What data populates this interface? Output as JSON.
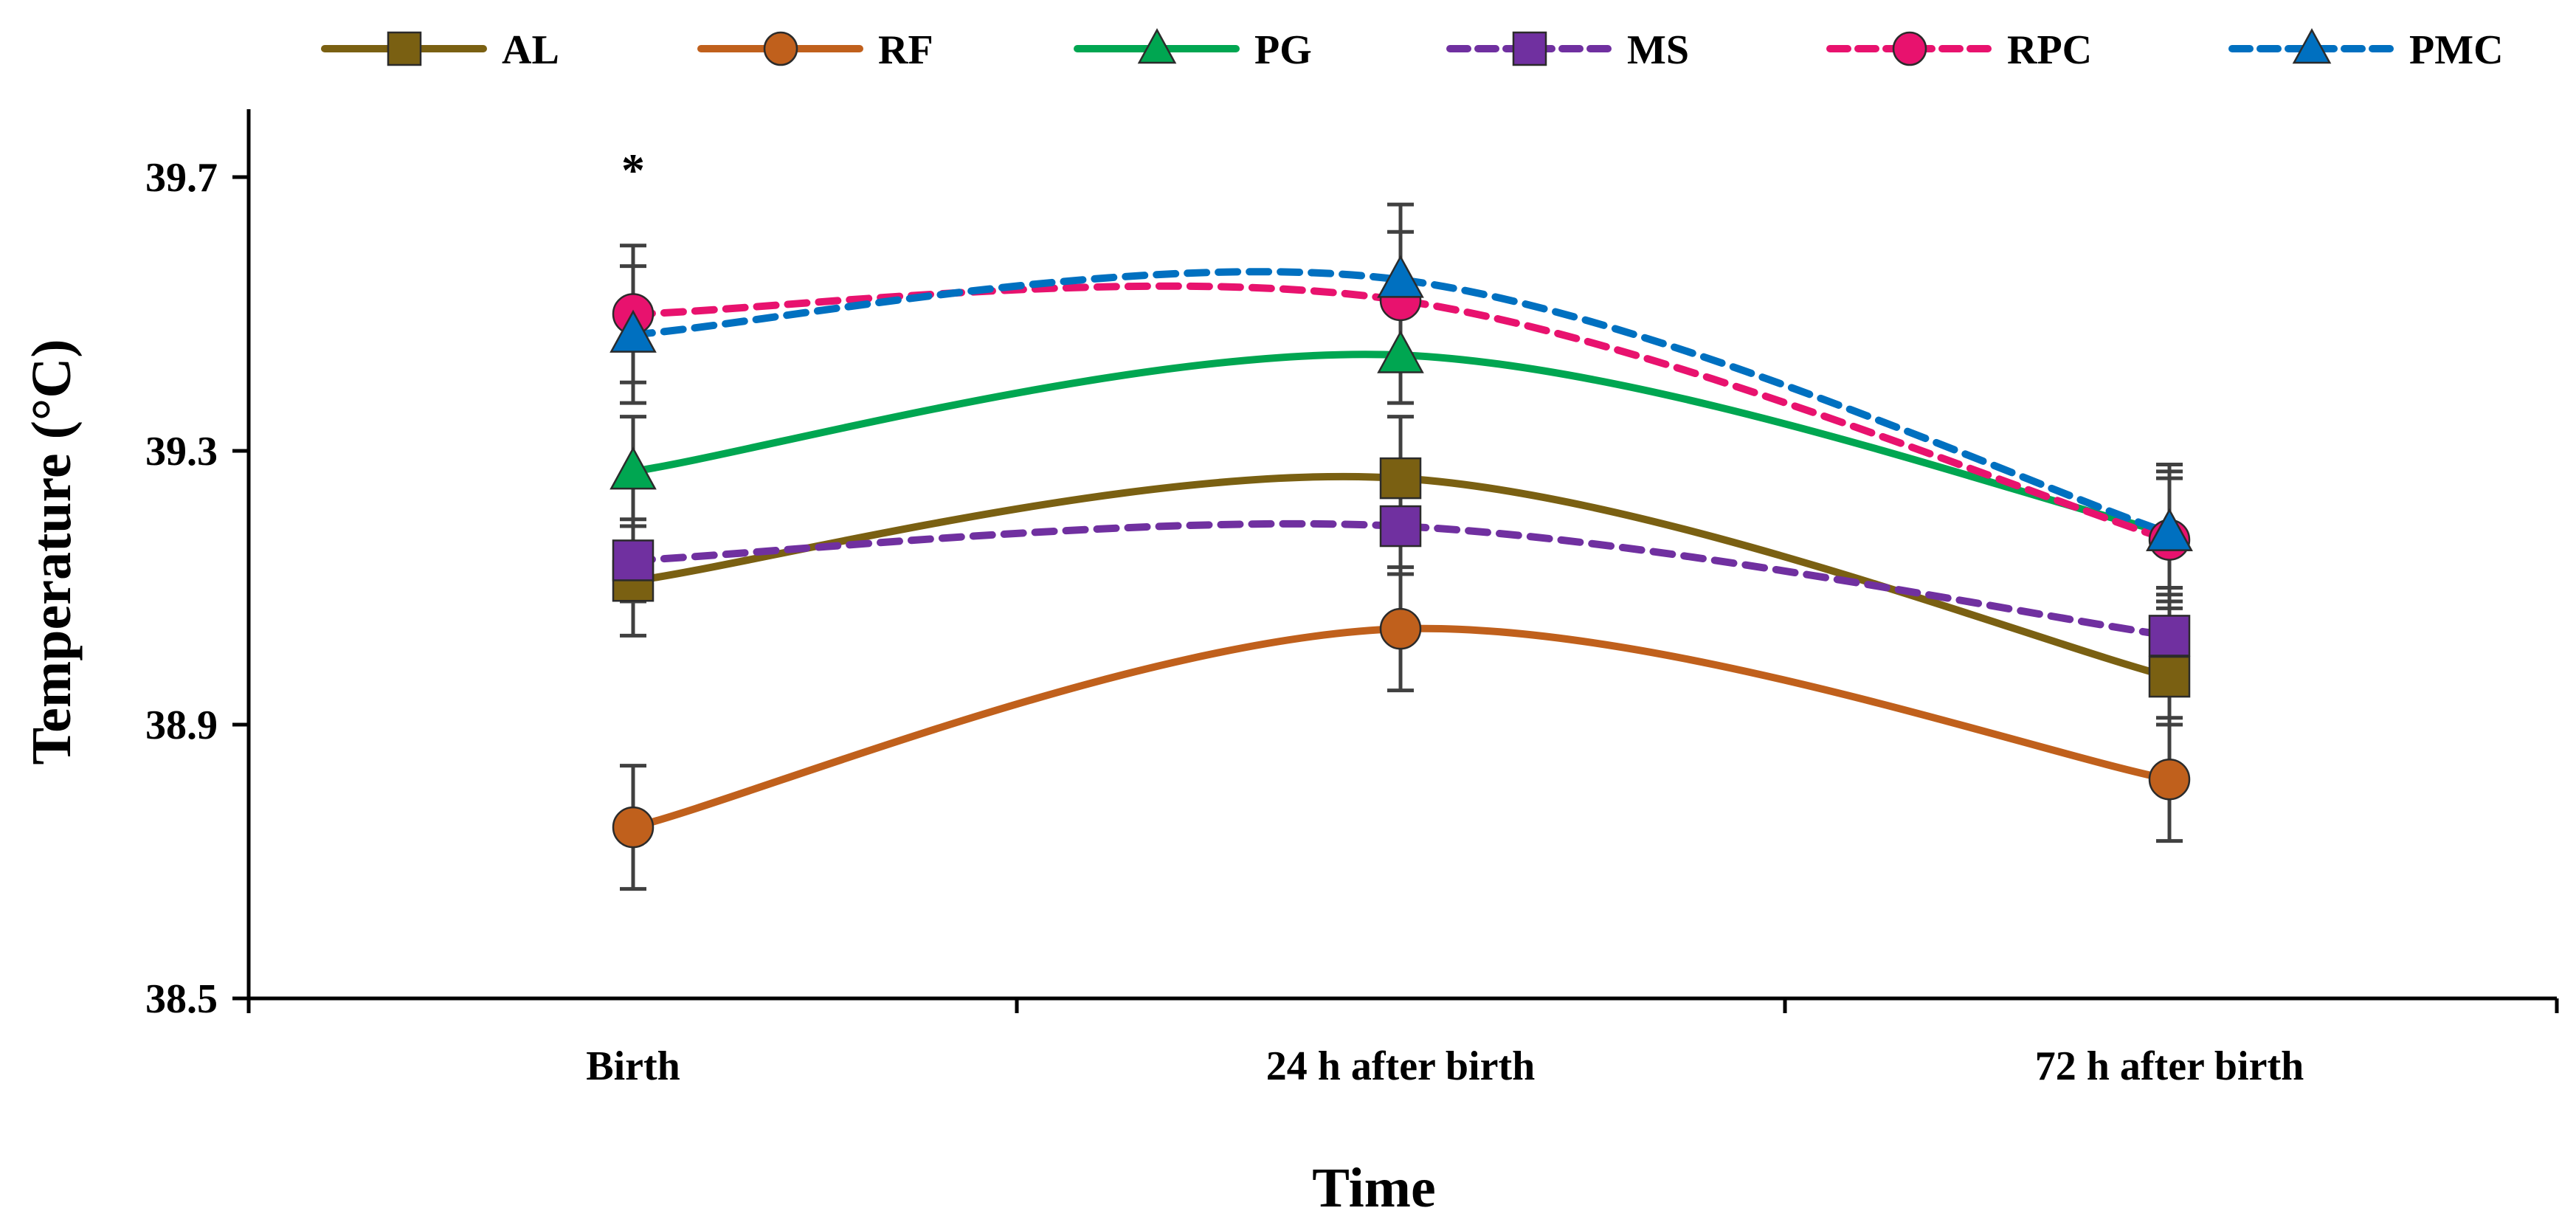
{
  "chart_data": {
    "type": "line",
    "title": "",
    "xlabel": "Time",
    "ylabel": "Temperature (°C)",
    "categories": [
      "Birth",
      "24 h after birth",
      "72 h after birth"
    ],
    "ylim": [
      38.5,
      39.8
    ],
    "yticks": [
      38.5,
      38.9,
      39.3,
      39.7
    ],
    "ytick_labels": [
      "38.5",
      "38.9",
      "39.3",
      "39.7"
    ],
    "grid": false,
    "legend_position": "top",
    "series": [
      {
        "name": "AL",
        "values": [
          39.11,
          39.26,
          38.97
        ],
        "errors": [
          0.08,
          0.09,
          0.07
        ],
        "color": "#7a6012",
        "line_style": "solid",
        "marker": "square"
      },
      {
        "name": "RF",
        "values": [
          38.75,
          39.04,
          38.82
        ],
        "errors": [
          0.09,
          0.09,
          0.09
        ],
        "color": "#c0601c",
        "line_style": "solid",
        "marker": "circle"
      },
      {
        "name": "PG",
        "values": [
          39.27,
          39.44,
          39.18
        ],
        "errors": [
          0.08,
          0.07,
          0.08
        ],
        "color": "#00a651",
        "line_style": "solid",
        "marker": "triangle"
      },
      {
        "name": "MS",
        "values": [
          39.14,
          39.19,
          39.03
        ],
        "errors": [
          0.06,
          0.07,
          0.06
        ],
        "color": "#7030a0",
        "line_style": "dashed",
        "marker": "square"
      },
      {
        "name": "RPC",
        "values": [
          39.5,
          39.52,
          39.17
        ],
        "errors": [
          0.1,
          0.1,
          0.1
        ],
        "color": "#e8126e",
        "line_style": "dashed",
        "marker": "circle"
      },
      {
        "name": "PMC",
        "values": [
          39.47,
          39.55,
          39.18
        ],
        "errors": [
          0.1,
          0.11,
          0.1
        ],
        "color": "#0070c0",
        "line_style": "dashed",
        "marker": "triangle"
      }
    ],
    "annotations": [
      {
        "text": "*",
        "category": "Birth",
        "y": 39.73
      }
    ]
  }
}
